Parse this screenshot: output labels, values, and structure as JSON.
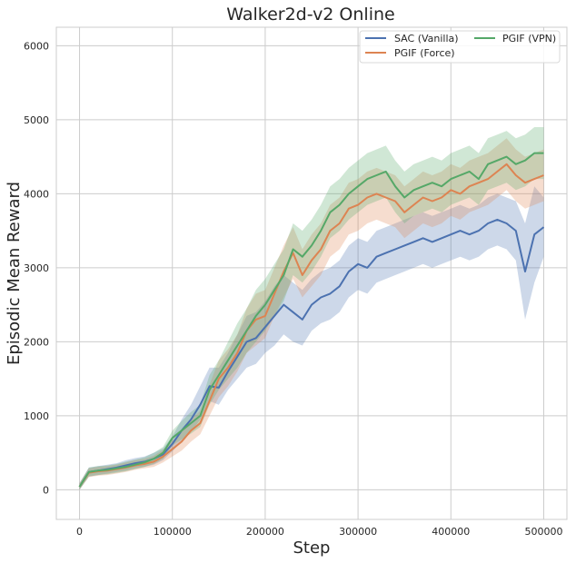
{
  "chart_data": {
    "type": "line",
    "title": "Walker2d-v2 Online",
    "xlabel": "Step",
    "ylabel": "Episodic Mean Reward",
    "xlim": [
      -25000,
      525000
    ],
    "ylim": [
      -400,
      6250
    ],
    "grid": true,
    "legend_position": "top-right",
    "x_ticks": [
      0,
      100000,
      200000,
      300000,
      400000,
      500000
    ],
    "x_tick_labels": [
      "0",
      "100000",
      "200000",
      "300000",
      "400000",
      "500000"
    ],
    "y_ticks": [
      0,
      1000,
      2000,
      3000,
      4000,
      5000,
      6000
    ],
    "y_tick_labels": [
      "0",
      "1000",
      "2000",
      "3000",
      "4000",
      "5000",
      "6000"
    ],
    "x": [
      0,
      10000,
      20000,
      30000,
      40000,
      50000,
      60000,
      70000,
      80000,
      90000,
      100000,
      110000,
      120000,
      130000,
      140000,
      150000,
      160000,
      170000,
      180000,
      190000,
      200000,
      210000,
      220000,
      230000,
      240000,
      250000,
      260000,
      270000,
      280000,
      290000,
      300000,
      310000,
      320000,
      330000,
      340000,
      350000,
      360000,
      370000,
      380000,
      390000,
      400000,
      410000,
      420000,
      430000,
      440000,
      450000,
      460000,
      470000,
      480000,
      490000,
      500000
    ],
    "series": [
      {
        "name": "SAC (Vanilla)",
        "color": "#4c72b0",
        "values": [
          40,
          240,
          260,
          280,
          300,
          330,
          360,
          380,
          420,
          480,
          620,
          800,
          950,
          1150,
          1400,
          1380,
          1600,
          1800,
          2000,
          2050,
          2200,
          2350,
          2500,
          2400,
          2300,
          2500,
          2600,
          2650,
          2750,
          2950,
          3050,
          3000,
          3150,
          3200,
          3250,
          3300,
          3350,
          3400,
          3350,
          3400,
          3450,
          3500,
          3450,
          3500,
          3600,
          3650,
          3600,
          3500,
          2950,
          3450,
          3550
        ],
        "lower": [
          0,
          180,
          200,
          220,
          240,
          260,
          290,
          310,
          340,
          400,
          520,
          650,
          780,
          950,
          1200,
          1150,
          1350,
          1500,
          1650,
          1700,
          1850,
          1950,
          2100,
          2000,
          1950,
          2150,
          2250,
          2300,
          2400,
          2600,
          2700,
          2650,
          2800,
          2850,
          2900,
          2950,
          3000,
          3050,
          3000,
          3050,
          3100,
          3150,
          3100,
          3150,
          3250,
          3300,
          3250,
          3100,
          2300,
          2800,
          3150
        ],
        "upper": [
          90,
          300,
          320,
          340,
          360,
          400,
          430,
          450,
          500,
          560,
          720,
          950,
          1150,
          1400,
          1650,
          1650,
          1850,
          2100,
          2350,
          2400,
          2550,
          2750,
          2900,
          2800,
          2700,
          2850,
          2950,
          3000,
          3100,
          3300,
          3400,
          3350,
          3500,
          3550,
          3600,
          3650,
          3700,
          3750,
          3700,
          3750,
          3800,
          3850,
          3800,
          3850,
          3950,
          4000,
          3950,
          3900,
          3600,
          4100,
          3950
        ]
      },
      {
        "name": "PGIF (Force)",
        "color": "#dd8452",
        "values": [
          40,
          230,
          250,
          260,
          280,
          300,
          330,
          350,
          380,
          450,
          550,
          650,
          800,
          900,
          1200,
          1500,
          1650,
          1850,
          2150,
          2300,
          2350,
          2650,
          2950,
          3200,
          2900,
          3100,
          3250,
          3500,
          3600,
          3800,
          3850,
          3950,
          4000,
          3950,
          3900,
          3750,
          3850,
          3950,
          3900,
          3950,
          4050,
          4000,
          4100,
          4150,
          4200,
          4300,
          4400,
          4250,
          4150,
          4200,
          4250
        ],
        "lower": [
          0,
          170,
          190,
          200,
          220,
          240,
          270,
          290,
          310,
          370,
          450,
          530,
          650,
          750,
          1000,
          1250,
          1400,
          1600,
          1850,
          1950,
          2050,
          2350,
          2600,
          2850,
          2600,
          2750,
          2900,
          3150,
          3250,
          3450,
          3500,
          3600,
          3650,
          3600,
          3550,
          3400,
          3500,
          3600,
          3550,
          3600,
          3700,
          3650,
          3750,
          3800,
          3850,
          3950,
          4050,
          3900,
          3800,
          3850,
          3900
        ],
        "upper": [
          90,
          290,
          310,
          320,
          340,
          370,
          400,
          420,
          460,
          540,
          660,
          780,
          950,
          1070,
          1420,
          1750,
          1900,
          2100,
          2450,
          2650,
          2700,
          3000,
          3300,
          3550,
          3250,
          3450,
          3600,
          3850,
          3950,
          4150,
          4200,
          4300,
          4350,
          4300,
          4250,
          4100,
          4200,
          4300,
          4250,
          4300,
          4400,
          4350,
          4450,
          4500,
          4550,
          4650,
          4750,
          4600,
          4500,
          4550,
          4600
        ]
      },
      {
        "name": "PGIF (VPN)",
        "color": "#55a868",
        "values": [
          40,
          240,
          260,
          270,
          290,
          310,
          340,
          370,
          420,
          500,
          700,
          800,
          900,
          1000,
          1350,
          1550,
          1750,
          1950,
          2150,
          2350,
          2500,
          2700,
          2900,
          3250,
          3150,
          3300,
          3500,
          3750,
          3850,
          4000,
          4100,
          4200,
          4250,
          4300,
          4100,
          3950,
          4050,
          4100,
          4150,
          4100,
          4200,
          4250,
          4300,
          4200,
          4400,
          4450,
          4500,
          4400,
          4450,
          4550,
          4550
        ],
        "lower": [
          0,
          180,
          200,
          210,
          230,
          250,
          280,
          310,
          350,
          420,
          600,
          680,
          760,
          850,
          1150,
          1350,
          1500,
          1650,
          1850,
          2000,
          2150,
          2350,
          2550,
          2900,
          2800,
          2950,
          3150,
          3400,
          3500,
          3650,
          3750,
          3850,
          3900,
          3950,
          3750,
          3600,
          3700,
          3750,
          3800,
          3750,
          3850,
          3900,
          3950,
          3850,
          4050,
          4100,
          4150,
          4050,
          4100,
          4200,
          4200
        ],
        "upper": [
          90,
          300,
          320,
          330,
          350,
          380,
          410,
          440,
          500,
          580,
          800,
          930,
          1050,
          1150,
          1550,
          1750,
          2000,
          2250,
          2450,
          2700,
          2850,
          3050,
          3250,
          3600,
          3500,
          3650,
          3850,
          4100,
          4200,
          4350,
          4450,
          4550,
          4600,
          4650,
          4450,
          4300,
          4400,
          4450,
          4500,
          4450,
          4550,
          4600,
          4650,
          4550,
          4750,
          4800,
          4850,
          4750,
          4800,
          4900,
          4900
        ]
      }
    ]
  }
}
